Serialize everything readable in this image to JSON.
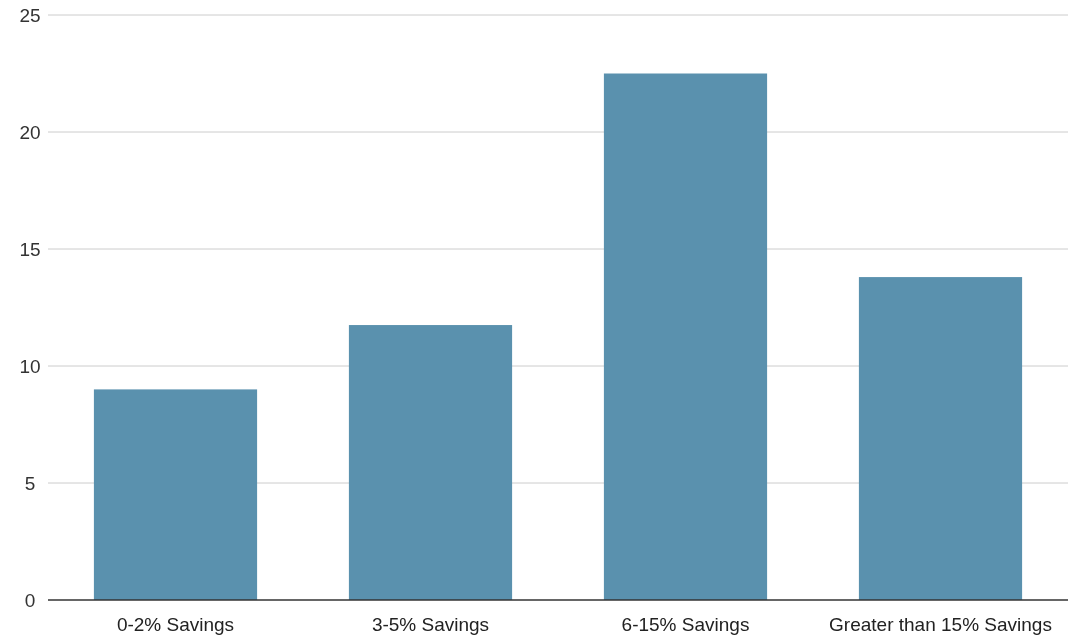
{
  "chart_data": {
    "type": "bar",
    "categories": [
      "0-2% Savings",
      "3-5% Savings",
      "6-15% Savings",
      "Greater than 15% Savings"
    ],
    "values": [
      9,
      11.75,
      22.5,
      13.8
    ],
    "color": "#5a91ae",
    "ylim": [
      0,
      25
    ],
    "yticks": [
      0,
      5,
      10,
      15,
      20,
      25
    ],
    "grid": "y"
  }
}
